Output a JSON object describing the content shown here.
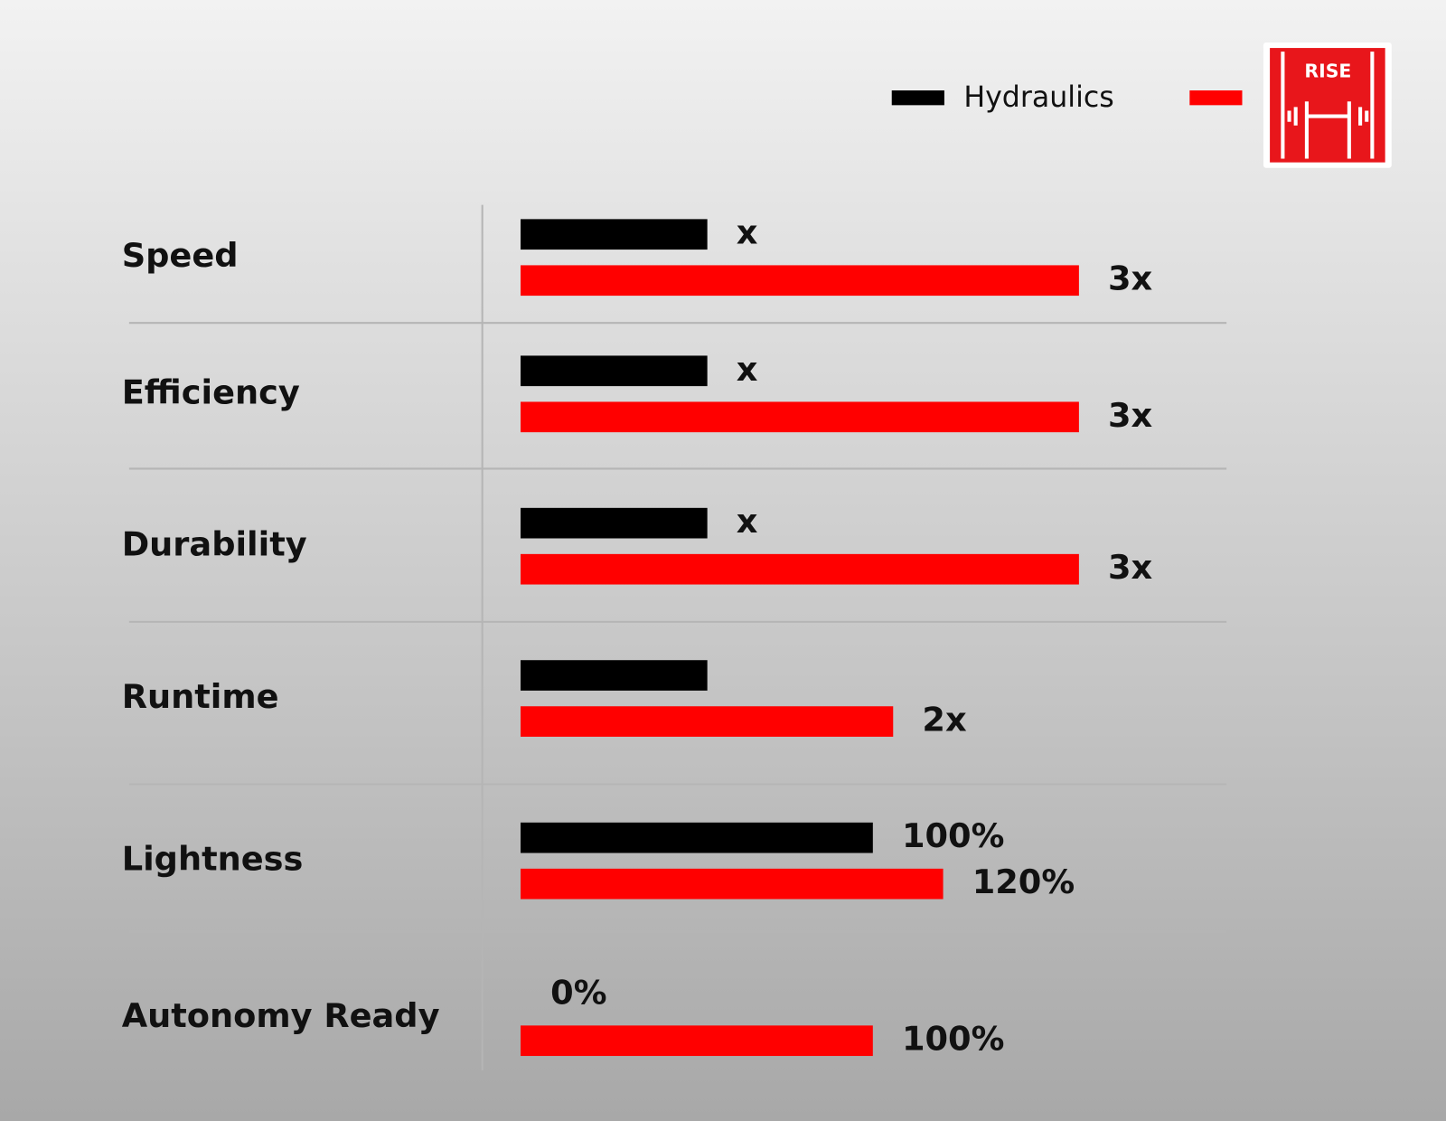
{
  "chart_data": {
    "type": "bar",
    "categories": [
      "Speed",
      "Efficiency",
      "Durability",
      "Runtime",
      "Lightness",
      "Autonomy Ready"
    ],
    "series": [
      {
        "name": "Hydraulics",
        "color": "#000000",
        "values": [
          1,
          1,
          1,
          1,
          100,
          0
        ],
        "value_labels": [
          "x",
          "x",
          "x",
          null,
          "100%",
          "0%"
        ]
      },
      {
        "name": "RISE",
        "color": "#ff0000",
        "values": [
          3,
          3,
          3,
          2,
          120,
          100
        ],
        "value_labels": [
          "3x",
          "3x",
          "3x",
          "2x",
          "120%",
          "100%"
        ]
      }
    ]
  }
}
